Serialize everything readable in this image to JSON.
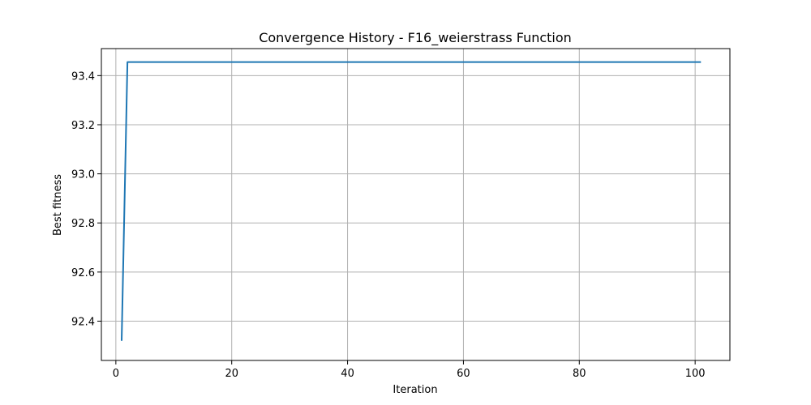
{
  "chart_data": {
    "type": "line",
    "title": "Convergence History - F16_weierstrass Function",
    "xlabel": "Iteration",
    "ylabel": "Best fitness",
    "xlim": [
      -2.5,
      106
    ],
    "ylim": [
      92.24,
      93.51
    ],
    "xticks": [
      0,
      20,
      40,
      60,
      80,
      100
    ],
    "yticks": [
      92.4,
      92.6,
      92.8,
      93.0,
      93.2,
      93.4
    ],
    "ytick_labels": [
      "92.4",
      "92.6",
      "92.8",
      "93.0",
      "93.2",
      "93.4"
    ],
    "grid": true,
    "series": [
      {
        "color": "#1f77b4",
        "x": [
          1,
          2,
          101
        ],
        "y": [
          92.32,
          93.455,
          93.455
        ]
      }
    ]
  }
}
